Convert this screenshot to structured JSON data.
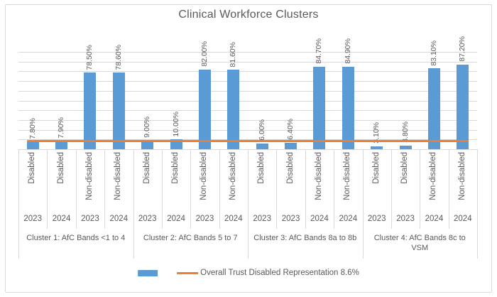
{
  "colors": {
    "bar": "#5B9BD5",
    "reference_line": "#ED7D31",
    "grid": "#D9D9D9",
    "text": "#595959"
  },
  "legend": {
    "bar_label": "",
    "line_label": "Overall Trust Disabled Representation 8.6%"
  },
  "chart_data": {
    "type": "bar",
    "title": "Clinical Workforce Clusters",
    "xlabel": "",
    "ylabel": "",
    "ylim": [
      0,
      100
    ],
    "grid_step": 10,
    "grid": true,
    "y_tick_labels_visible": false,
    "legend_position": "bottom",
    "reference_line": {
      "value": 8.6,
      "label": "Overall Trust Disabled Representation 8.6%"
    },
    "groups": [
      {
        "label": "Cluster 1: AfC Bands <1 to 4",
        "bars": [
          {
            "category": "Disabled",
            "year": "2023",
            "value": 7.8,
            "display": "7.80%"
          },
          {
            "category": "Disabled",
            "year": "2024",
            "value": 7.9,
            "display": "7.90%"
          },
          {
            "category": "Non-disabled",
            "year": "2023",
            "value": 78.5,
            "display": "78.50%"
          },
          {
            "category": "Non-disabled",
            "year": "2024",
            "value": 78.6,
            "display": "78.60%"
          }
        ]
      },
      {
        "label": "Cluster 2: AfC Bands 5 to 7",
        "bars": [
          {
            "category": "Disabled",
            "year": "2023",
            "value": 9.0,
            "display": "9.00%"
          },
          {
            "category": "Disabled",
            "year": "2024",
            "value": 10.0,
            "display": "10.00%"
          },
          {
            "category": "Non-disabled",
            "year": "2023",
            "value": 82.0,
            "display": "82.00%"
          },
          {
            "category": "Non-disabled",
            "year": "2024",
            "value": 81.6,
            "display": "81.60%"
          }
        ]
      },
      {
        "label": "Cluster 3: AfC Bands 8a to 8b",
        "bars": [
          {
            "category": "Disabled",
            "year": "2023",
            "value": 6.0,
            "display": "6.00%"
          },
          {
            "category": "Disabled",
            "year": "2023",
            "value": 6.4,
            "display": "6.40%"
          },
          {
            "category": "Non-disabled",
            "year": "2024",
            "value": 84.7,
            "display": "84.70%"
          },
          {
            "category": "Non-disabled",
            "year": "2024",
            "value": 84.9,
            "display": "84.90%"
          }
        ]
      },
      {
        "label": "Cluster 4: AfC Bands 8c to VSM",
        "bars": [
          {
            "category": "Disabled",
            "year": "2023",
            "value": 3.1,
            "display": "3.10%"
          },
          {
            "category": "Disabled",
            "year": "2023",
            "value": 3.8,
            "display": "3.80%"
          },
          {
            "category": "Non-disabled",
            "year": "2024",
            "value": 83.1,
            "display": "83.10%"
          },
          {
            "category": "Non-disabled",
            "year": "2024",
            "value": 87.2,
            "display": "87.20%"
          }
        ]
      }
    ]
  }
}
